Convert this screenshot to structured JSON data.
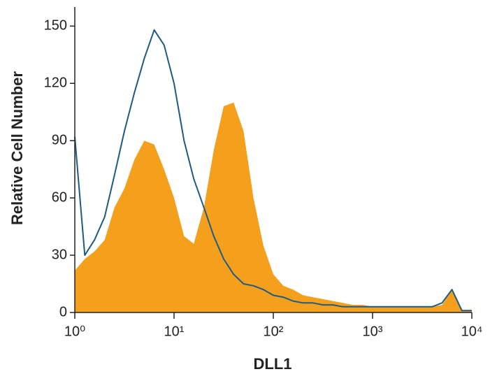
{
  "chart_data": {
    "type": "histogram",
    "xlabel": "DLL1",
    "ylabel": "Relative Cell Number",
    "x": [
      1,
      1.26,
      1.58,
      2,
      2.51,
      3.16,
      3.98,
      5.01,
      6.31,
      7.94,
      10,
      12.6,
      15.8,
      20,
      25.1,
      31.6,
      39.8,
      50.1,
      63.1,
      79.4,
      100,
      126,
      158,
      200,
      251,
      316,
      398,
      501,
      631,
      794,
      1000,
      1260,
      1580,
      2000,
      2510,
      3160,
      3980,
      5010,
      6310,
      7940,
      10000
    ],
    "series": [
      {
        "color": "#f5a01c",
        "fill": true,
        "values": [
          22,
          28,
          32,
          38,
          55,
          65,
          80,
          90,
          88,
          75,
          60,
          40,
          36,
          55,
          85,
          108,
          110,
          95,
          60,
          35,
          20,
          14,
          12,
          9,
          8,
          7,
          6,
          5,
          4,
          4,
          3,
          3,
          3,
          3,
          3,
          3,
          3,
          4,
          12,
          1,
          1
        ]
      },
      {
        "color": "#1f5a85",
        "fill": false,
        "values": [
          92,
          30,
          38,
          50,
          72,
          95,
          115,
          133,
          148,
          140,
          120,
          90,
          70,
          55,
          40,
          28,
          20,
          15,
          14,
          12,
          9,
          8,
          6,
          5,
          5,
          4,
          4,
          3,
          3,
          3,
          3,
          3,
          3,
          3,
          3,
          3,
          3,
          5,
          12,
          1,
          1
        ]
      }
    ],
    "xscale": "log",
    "xlim": [
      1,
      10000
    ],
    "xticks": [
      {
        "value": 1,
        "label": "10⁰"
      },
      {
        "value": 10,
        "label": "10¹"
      },
      {
        "value": 100,
        "label": "10²"
      },
      {
        "value": 1000,
        "label": "10³"
      },
      {
        "value": 10000,
        "label": "10⁴"
      }
    ],
    "ylim": [
      0,
      160
    ],
    "yticks": [
      0,
      30,
      60,
      90,
      120,
      150
    ]
  }
}
